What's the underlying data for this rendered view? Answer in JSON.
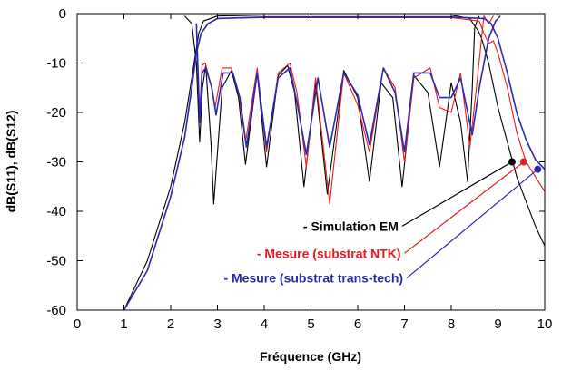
{
  "chart_data": {
    "type": "line",
    "xlabel": "Fréquence (GHz)",
    "ylabel": "dB(S11), dB(S12)",
    "xlim": [
      0,
      10
    ],
    "ylim": [
      -60,
      0
    ],
    "xticks": [
      "0",
      "1",
      "2",
      "3",
      "4",
      "5",
      "6",
      "7",
      "8",
      "9",
      "10"
    ],
    "yticks": [
      "0",
      "-10",
      "-20",
      "-30",
      "-40",
      "-50",
      "-60"
    ],
    "grid": false,
    "legend_placement": "bottom-right",
    "series": [
      {
        "name": "- Simulation EM",
        "color": "#000000",
        "s21": {
          "x": [
            1.0,
            1.5,
            2.0,
            2.3,
            2.45,
            2.55,
            2.6,
            2.7,
            3.0,
            4.0,
            5.0,
            6.0,
            7.0,
            8.0,
            8.4,
            8.5,
            8.58,
            8.65,
            8.8,
            9.0,
            9.2,
            9.4,
            9.6,
            9.8,
            10.0
          ],
          "y": [
            -60,
            -50,
            -35,
            -22,
            -13,
            -7,
            -4,
            -1.5,
            -0.5,
            -0.3,
            -0.3,
            -0.3,
            -0.3,
            -0.3,
            -1.0,
            -2.5,
            -3.5,
            -5,
            -10,
            -19,
            -26,
            -33,
            -38,
            -43,
            -47
          ]
        },
        "s11": {
          "x": [
            2.3,
            2.45,
            2.55,
            2.62,
            2.68,
            2.75,
            2.86,
            2.92,
            3.1,
            3.3,
            3.45,
            3.6,
            3.85,
            4.05,
            4.3,
            4.5,
            4.65,
            4.85,
            5.1,
            5.35,
            5.7,
            6.0,
            6.25,
            6.5,
            6.75,
            6.95,
            7.2,
            7.5,
            7.75,
            8.0,
            8.2,
            8.35,
            8.45,
            8.5,
            8.55,
            8.6
          ],
          "y": [
            -0.5,
            -2,
            -10,
            -26,
            -15,
            -10.5,
            -26,
            -38.5,
            -15,
            -11.5,
            -17,
            -30.5,
            -12,
            -31,
            -12.5,
            -10.5,
            -16,
            -35,
            -14,
            -36.5,
            -11.5,
            -17,
            -34,
            -14,
            -17,
            -35,
            -12.5,
            -16,
            -31,
            -14,
            -22,
            -34,
            -15,
            -3,
            -1.5,
            -0.5
          ]
        }
      },
      {
        "name": "- Mesure (substrat NTK)",
        "color": "#e8191f",
        "s21": {
          "x": [
            1.0,
            1.5,
            2.0,
            2.3,
            2.45,
            2.55,
            2.65,
            2.8,
            3.0,
            4.0,
            5.0,
            6.0,
            7.0,
            8.0,
            8.6,
            8.7,
            8.8,
            8.9,
            9.0,
            9.2,
            9.4,
            9.6,
            9.8,
            10.0
          ],
          "y": [
            -60,
            -52,
            -37,
            -25,
            -15,
            -8,
            -4,
            -2,
            -1.0,
            -0.8,
            -0.8,
            -0.8,
            -0.8,
            -0.8,
            -1.5,
            -4,
            -6,
            -5.5,
            -8,
            -15,
            -24,
            -30,
            -33,
            -36
          ]
        },
        "s11": {
          "x": [
            2.55,
            2.62,
            2.67,
            2.74,
            2.85,
            2.95,
            3.1,
            3.3,
            3.45,
            3.6,
            3.85,
            4.05,
            4.3,
            4.55,
            4.7,
            4.9,
            5.1,
            5.4,
            5.7,
            6.0,
            6.25,
            6.55,
            6.8,
            7.0,
            7.2,
            7.55,
            7.75,
            8.0,
            8.2,
            8.4,
            8.55,
            8.7,
            8.8,
            8.9
          ],
          "y": [
            -2,
            -20,
            -10.5,
            -10,
            -14,
            -19,
            -11,
            -11,
            -16,
            -26,
            -11,
            -28,
            -12,
            -10,
            -16,
            -31,
            -13,
            -38.5,
            -12,
            -18.5,
            -28,
            -11,
            -15,
            -30,
            -13,
            -11,
            -19,
            -20,
            -12,
            -27,
            -14,
            -0.5,
            -2,
            -0.5
          ]
        }
      },
      {
        "name": "- Mesure (substrat trans-tech)",
        "color": "#2a2ab0",
        "s21": {
          "x": [
            1.0,
            1.5,
            2.0,
            2.3,
            2.45,
            2.55,
            2.65,
            2.8,
            3.0,
            4.0,
            5.0,
            6.0,
            7.0,
            8.0,
            8.7,
            8.85,
            9.0,
            9.2,
            9.4,
            9.6,
            9.8,
            10.0
          ],
          "y": [
            -60,
            -52,
            -37,
            -25,
            -15,
            -8,
            -4,
            -2,
            -1.0,
            -0.7,
            -0.7,
            -0.7,
            -0.7,
            -0.7,
            -1.0,
            -2.0,
            -5,
            -12,
            -20,
            -25.5,
            -29.5,
            -31.5
          ]
        },
        "s11": {
          "x": [
            2.55,
            2.62,
            2.67,
            2.75,
            2.88,
            2.97,
            3.12,
            3.33,
            3.48,
            3.62,
            3.85,
            4.05,
            4.3,
            4.55,
            4.7,
            4.9,
            5.15,
            5.4,
            5.7,
            6.0,
            6.25,
            6.55,
            6.8,
            7.0,
            7.2,
            7.55,
            7.75,
            8.0,
            8.2,
            8.45,
            8.6,
            8.8,
            8.95,
            9.05
          ],
          "y": [
            -2,
            -22,
            -12,
            -11,
            -15,
            -20.5,
            -12,
            -12,
            -17,
            -27,
            -12,
            -27,
            -13,
            -11,
            -18,
            -28.5,
            -13,
            -27,
            -12,
            -16.5,
            -26.5,
            -11,
            -16,
            -28,
            -12,
            -12,
            -17,
            -17,
            -13,
            -24.5,
            -15,
            -5,
            -1.5,
            -0.5
          ]
        }
      }
    ],
    "annotations": [
      {
        "series": 0,
        "marker_at": [
          9.3,
          -30
        ],
        "label_at": [
          6.95,
          -43
        ]
      },
      {
        "series": 1,
        "marker_at": [
          9.55,
          -30
        ],
        "label_at": [
          7.0,
          -48.5
        ]
      },
      {
        "series": 2,
        "marker_at": [
          9.85,
          -31.5
        ],
        "label_at": [
          7.05,
          -53.5
        ]
      }
    ]
  }
}
